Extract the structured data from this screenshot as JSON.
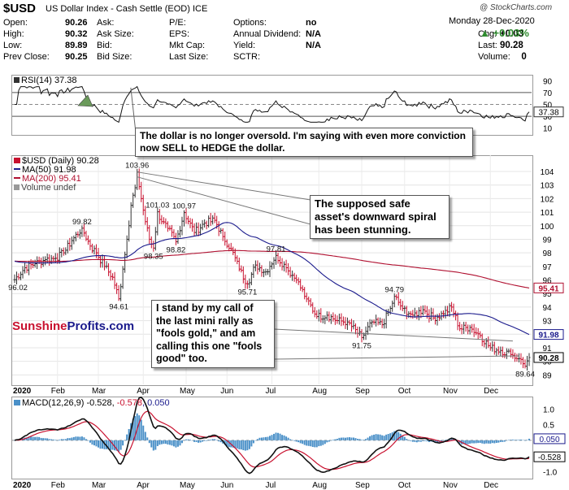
{
  "header": {
    "symbol": "$USD",
    "name": "US Dollar Index - Cash Settle (EOD) ICE",
    "watermark": "@ StockCharts.com",
    "date": "Monday  28-Dec-2020",
    "change_pct": "▲ +0.03%",
    "up_color": "#2e8b2e",
    "quote": [
      {
        "label": "Open:",
        "value": "90.26"
      },
      {
        "label": "High:",
        "value": "90.32"
      },
      {
        "label": "Low:",
        "value": "89.89"
      },
      {
        "label": "Prev Close:",
        "value": "90.25"
      }
    ],
    "col2": [
      "Ask:",
      "Ask Size:",
      "Bid:",
      "Bid Size:"
    ],
    "col3": [
      "P/E:",
      "EPS:",
      "Mkt Cap:",
      "Last Size:"
    ],
    "col4": [
      {
        "label": "Options:",
        "value": "no"
      },
      {
        "label": "Annual Dividend:",
        "value": "N/A"
      },
      {
        "label": "Yield:",
        "value": "N/A"
      },
      {
        "label": "SCTR:",
        "value": ""
      }
    ],
    "col5": [
      {
        "label": "Chg:",
        "value": "+0.03"
      },
      {
        "label": "Last:",
        "value": "90.28"
      },
      {
        "label": "Volume:",
        "value": "0"
      }
    ]
  },
  "rsi": {
    "legend": "RSI(14) 37.38",
    "last_label": "37.38",
    "ticks": [
      90,
      70,
      50,
      30,
      10
    ],
    "ylim": [
      0,
      100
    ]
  },
  "price": {
    "legend_main": "$USD (Daily) 90.28",
    "legend_ma50": "MA(50) 91.98",
    "legend_ma200": "MA(200) 95.41",
    "legend_volume": "Volume undef",
    "ma50_color": "#1a1a8c",
    "ma200_color": "#b01030",
    "candle_color": "#c8102e",
    "ylim": [
      88.3,
      105.2
    ],
    "ticks": [
      104,
      103,
      102,
      101,
      100,
      99,
      98,
      97,
      96,
      95,
      94,
      93,
      92,
      91,
      90,
      89
    ],
    "badges": [
      {
        "text": "95.41",
        "value": 95.41,
        "color": "#b01030"
      },
      {
        "text": "91.98",
        "value": 91.98,
        "color": "#1a1a8c"
      },
      {
        "text": "90.28",
        "value": 90.28,
        "color": "#000000"
      }
    ],
    "peak_labels": [
      {
        "text": "96.02",
        "x": 0,
        "y": 96.02
      },
      {
        "text": "99.82",
        "x": 33,
        "y": 99.82
      },
      {
        "text": "94.61",
        "x": 51,
        "y": 94.61
      },
      {
        "text": "103.96",
        "x": 60,
        "y": 103.96
      },
      {
        "text": "98.35",
        "x": 68,
        "y": 98.35
      },
      {
        "text": "101.03",
        "x": 70,
        "y": 101.03
      },
      {
        "text": "98.82",
        "x": 79,
        "y": 98.82
      },
      {
        "text": "100.97",
        "x": 83,
        "y": 100.97
      },
      {
        "text": "95.71",
        "x": 114,
        "y": 95.71
      },
      {
        "text": "97.81",
        "x": 128,
        "y": 97.81
      },
      {
        "text": "91.75",
        "x": 170,
        "y": 91.75
      },
      {
        "text": "94.79",
        "x": 186,
        "y": 94.79
      },
      {
        "text": "89.64",
        "x": 250,
        "y": 89.64
      }
    ]
  },
  "macd": {
    "legend_prefix": "MACD(12,26,9) -0.528, ",
    "legend_signal": "-0.578",
    "legend_hist": ", 0.050",
    "ticks": [
      "1.0",
      "0.5",
      "-1.0"
    ],
    "badges": [
      {
        "text": "0.050",
        "value": 0.05,
        "color": "#1a1a8c"
      },
      {
        "text": "-0.528",
        "value": -0.528,
        "color": "#000000"
      }
    ],
    "ylim": [
      -1.2,
      1.4
    ]
  },
  "xaxis": {
    "months": [
      "2020",
      "Feb",
      "Mar",
      "Apr",
      "May",
      "Jun",
      "Jul",
      "Aug",
      "Sep",
      "Oct",
      "Nov",
      "Dec"
    ],
    "month_start_index": [
      0,
      21,
      41,
      63,
      84,
      104,
      126,
      149,
      170,
      191,
      213,
      233
    ]
  },
  "callouts": {
    "rsi_note": "The dollar is no longer oversold. I'm saying with even more conviction now SELL to HEDGE the dollar.",
    "spiral_note": "The supposed safe asset's downward spiral has been stunning.",
    "fools_note": "I stand by my call of the last mini rally as \"fools gold,\" and am calling this one \"fools good\" too."
  },
  "brand": {
    "part1": "Sunshine",
    "part2": "Profits.com",
    "color1": "#c8102e",
    "color2": "#1a1a8c"
  },
  "chart_data": {
    "type": "line",
    "title": "$USD (Daily) 90.28",
    "x_index_note": "trading day index from 2-Jan-2020 (0) to 28-Dec-2020 (252)",
    "anchors": [
      {
        "x": 0,
        "y": 96.02
      },
      {
        "x": 5,
        "y": 96.9
      },
      {
        "x": 10,
        "y": 97.2
      },
      {
        "x": 15,
        "y": 97.5
      },
      {
        "x": 20,
        "y": 97.6
      },
      {
        "x": 24,
        "y": 98.0
      },
      {
        "x": 28,
        "y": 98.9
      },
      {
        "x": 33,
        "y": 99.82
      },
      {
        "x": 37,
        "y": 98.5
      },
      {
        "x": 40,
        "y": 98.0
      },
      {
        "x": 44,
        "y": 97.0
      },
      {
        "x": 48,
        "y": 96.2
      },
      {
        "x": 51,
        "y": 94.61
      },
      {
        "x": 53,
        "y": 96.8
      },
      {
        "x": 55,
        "y": 99.0
      },
      {
        "x": 57,
        "y": 101.5
      },
      {
        "x": 59,
        "y": 102.8
      },
      {
        "x": 60,
        "y": 103.96
      },
      {
        "x": 62,
        "y": 102.0
      },
      {
        "x": 64,
        "y": 100.3
      },
      {
        "x": 66,
        "y": 99.0
      },
      {
        "x": 68,
        "y": 98.35
      },
      {
        "x": 70,
        "y": 101.03
      },
      {
        "x": 72,
        "y": 100.3
      },
      {
        "x": 75,
        "y": 99.8
      },
      {
        "x": 79,
        "y": 98.82
      },
      {
        "x": 83,
        "y": 100.97
      },
      {
        "x": 88,
        "y": 99.5
      },
      {
        "x": 93,
        "y": 100.2
      },
      {
        "x": 98,
        "y": 100.4
      },
      {
        "x": 102,
        "y": 99.2
      },
      {
        "x": 106,
        "y": 98.3
      },
      {
        "x": 110,
        "y": 96.8
      },
      {
        "x": 114,
        "y": 95.71
      },
      {
        "x": 118,
        "y": 97.1
      },
      {
        "x": 123,
        "y": 96.6
      },
      {
        "x": 128,
        "y": 97.81
      },
      {
        "x": 133,
        "y": 96.9
      },
      {
        "x": 138,
        "y": 96.0
      },
      {
        "x": 143,
        "y": 94.6
      },
      {
        "x": 148,
        "y": 93.3
      },
      {
        "x": 153,
        "y": 93.4
      },
      {
        "x": 158,
        "y": 93.0
      },
      {
        "x": 163,
        "y": 92.9
      },
      {
        "x": 170,
        "y": 91.75
      },
      {
        "x": 175,
        "y": 92.9
      },
      {
        "x": 180,
        "y": 92.7
      },
      {
        "x": 184,
        "y": 93.9
      },
      {
        "x": 186,
        "y": 94.79
      },
      {
        "x": 190,
        "y": 93.9
      },
      {
        "x": 195,
        "y": 93.4
      },
      {
        "x": 200,
        "y": 93.8
      },
      {
        "x": 205,
        "y": 93.2
      },
      {
        "x": 210,
        "y": 93.5
      },
      {
        "x": 214,
        "y": 94.0
      },
      {
        "x": 218,
        "y": 92.4
      },
      {
        "x": 223,
        "y": 92.5
      },
      {
        "x": 228,
        "y": 91.9
      },
      {
        "x": 233,
        "y": 91.0
      },
      {
        "x": 238,
        "y": 90.8
      },
      {
        "x": 243,
        "y": 90.5
      },
      {
        "x": 247,
        "y": 90.2
      },
      {
        "x": 250,
        "y": 89.64
      },
      {
        "x": 252,
        "y": 90.28
      }
    ]
  }
}
